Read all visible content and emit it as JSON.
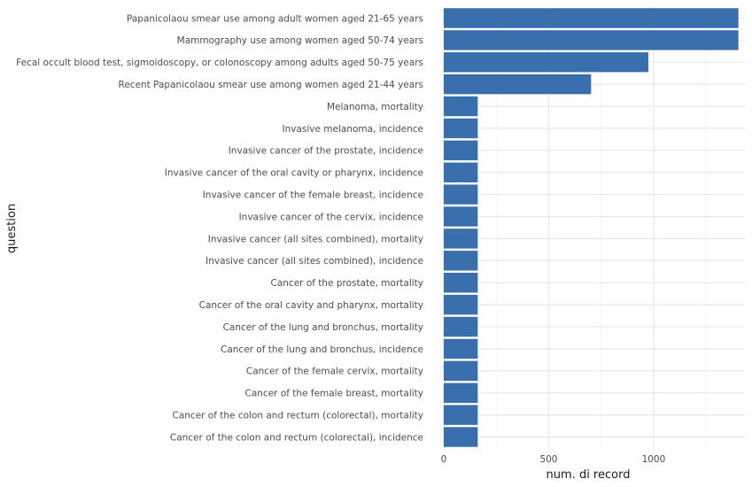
{
  "chart_data": {
    "type": "bar",
    "orientation": "horizontal",
    "xlabel": "num. di record",
    "ylabel": "question",
    "xlim": [
      0,
      1435
    ],
    "xticks": [
      0,
      500,
      1000
    ],
    "grid": true,
    "bar_color": "#3a6fad",
    "categories": [
      "Papanicolaou smear use among adult women aged 21-65 years",
      "Mammography use among women aged 50-74 years",
      "Fecal occult blood test, sigmoidoscopy, or colonoscopy among adults aged 50-75 years",
      "Recent Papanicolaou smear use among women aged 21-44 years",
      "Melanoma, mortality",
      "Invasive melanoma, incidence",
      "Invasive cancer of the prostate, incidence",
      "Invasive cancer of the oral cavity or pharynx, incidence",
      "Invasive cancer of the female breast, incidence",
      "Invasive cancer of the cervix, incidence",
      "Invasive cancer (all sites combined), mortality",
      "Invasive cancer (all sites combined), incidence",
      "Cancer of the prostate, mortality",
      "Cancer of the oral cavity and pharynx, mortality",
      "Cancer of the lung and bronchus, mortality",
      "Cancer of the lung and bronchus, incidence",
      "Cancer of the female cervix, mortality",
      "Cancer of the female breast, mortality",
      "Cancer of the colon and rectum (colorectal), mortality",
      "Cancer of the colon and rectum (colorectal), incidence"
    ],
    "values": [
      1404,
      1404,
      975,
      702,
      162,
      162,
      162,
      162,
      162,
      162,
      162,
      162,
      162,
      162,
      162,
      162,
      162,
      162,
      162,
      162
    ]
  }
}
